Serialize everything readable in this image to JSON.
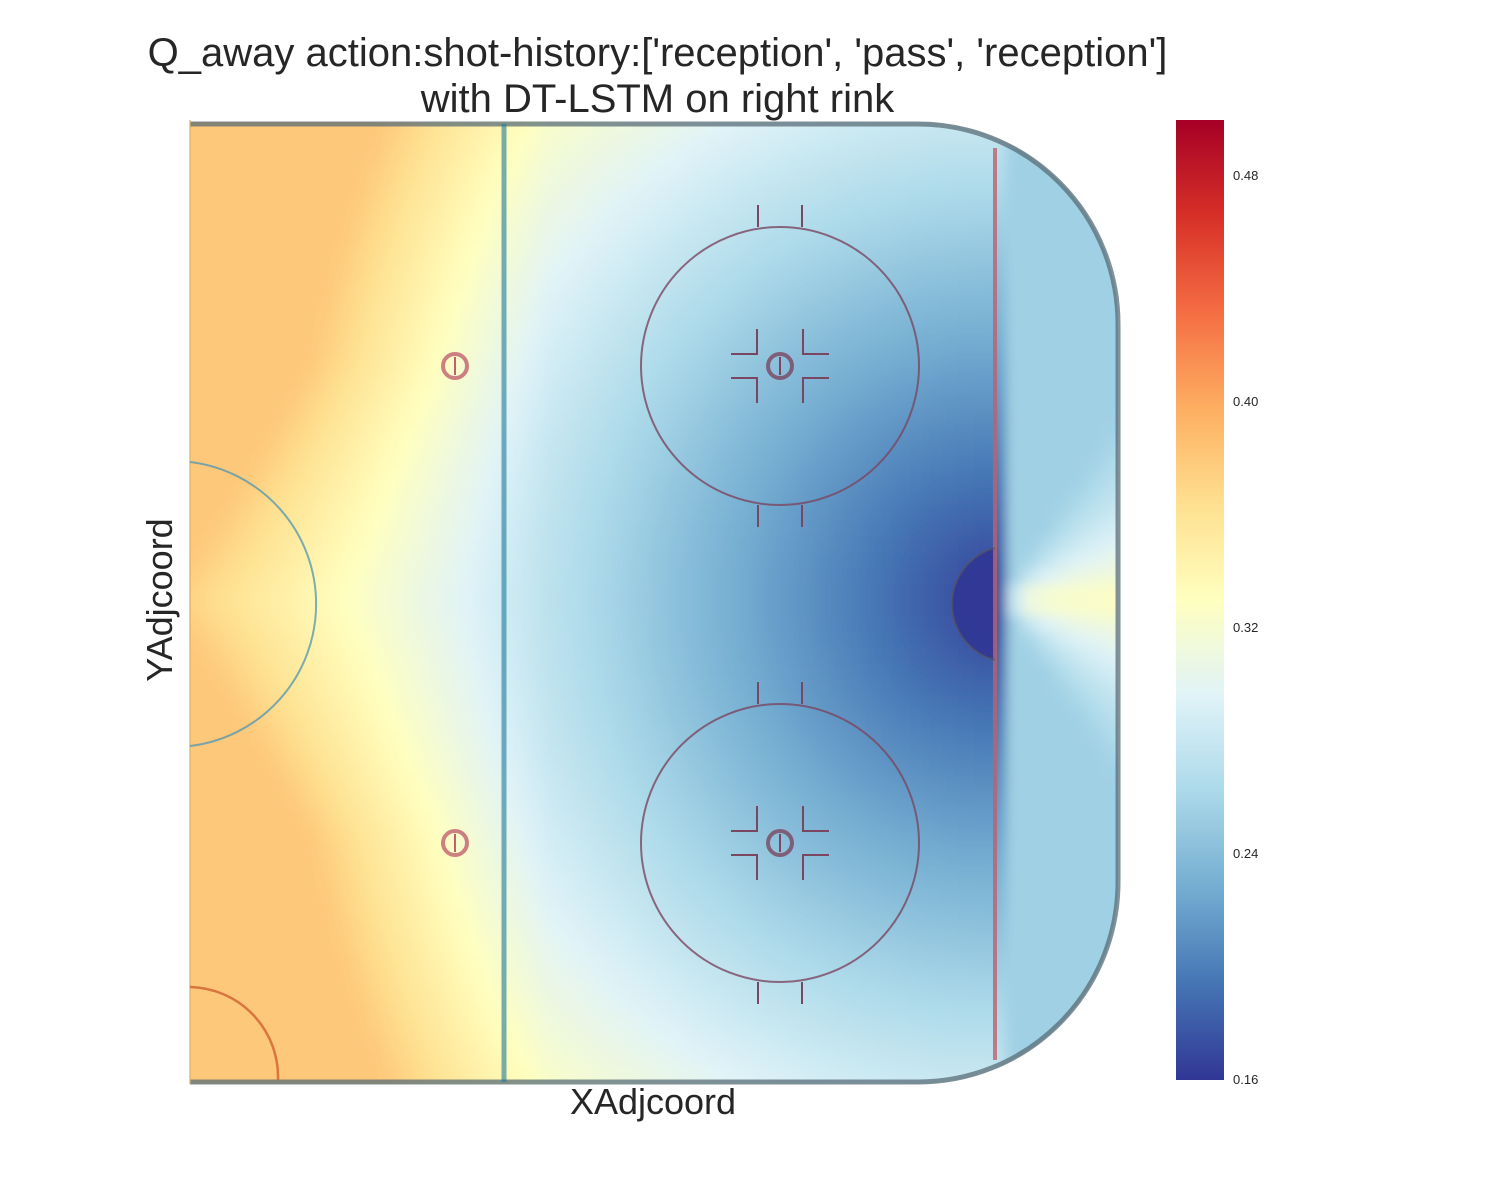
{
  "chart_data": {
    "type": "heatmap",
    "title_lines": [
      "Q_away action:shot-history:['reception', 'pass', 'reception']",
      "with DT-LSTM on right rink"
    ],
    "xlabel": "XAdjcoord",
    "ylabel": "YAdjcoord",
    "colormap": "RdYlBu_r",
    "colorbar": {
      "vmin": 0.16,
      "vmax": 0.5,
      "ticks": [
        "0.16",
        "0.24",
        "0.32",
        "0.40",
        "0.48"
      ],
      "tick_values": [
        0.16,
        0.24,
        0.32,
        0.4,
        0.48
      ]
    },
    "colors": {
      "rink_lines": "#5a6e78",
      "blue_line": "#1f7a9a",
      "goal_line": "#c0606e",
      "faceoff": "#7a4660"
    },
    "value_range_shown": [
      0.16,
      0.38
    ],
    "notes_visible": "lowest value at goal crease, highest in left corners"
  }
}
